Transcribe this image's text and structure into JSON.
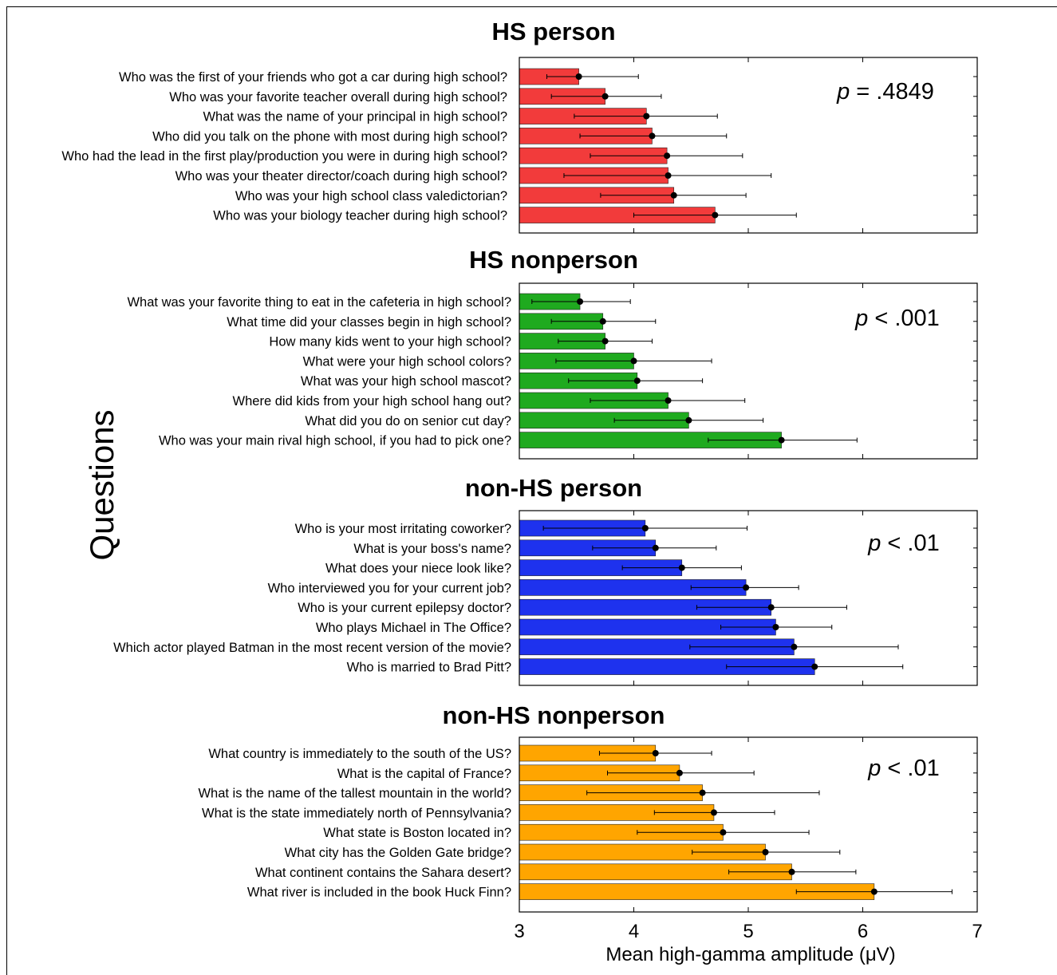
{
  "y_axis_label": "Questions",
  "chart_data": {
    "type": "bar",
    "orientation": "horizontal",
    "xlabel": "Mean high-gamma amplitude (μV)",
    "xlim": [
      3,
      7
    ],
    "xticks": [
      "3",
      "4",
      "5",
      "6",
      "7"
    ],
    "ylabel": "Questions",
    "grid": false,
    "panels": [
      {
        "title": "HS person",
        "annotation_p": "p",
        "annotation_rest": " = .4849",
        "color": "#f23b3b",
        "categories": [
          "Who was the first of your friends who got a car during high school?",
          "Who was your favorite teacher overall during high school?",
          "What was the name of your principal in high school?",
          "Who did you talk on the phone with most during high school?",
          "Who had the lead in the first play/production you were in during high school?",
          "Who was your theater director/coach during high school?",
          "Who was your high school class valedictorian?",
          "Who was your biology teacher during high school?"
        ],
        "values": [
          3.52,
          3.75,
          4.11,
          4.16,
          4.29,
          4.3,
          4.35,
          4.71
        ],
        "error_low": [
          3.24,
          3.28,
          3.48,
          3.53,
          3.62,
          3.39,
          3.71,
          4.0
        ],
        "error_high": [
          4.04,
          4.24,
          4.73,
          4.81,
          4.95,
          5.2,
          4.98,
          5.42
        ]
      },
      {
        "title": "HS nonperson",
        "annotation_p": "p",
        "annotation_rest": " < .001",
        "color": "#1faa1f",
        "categories": [
          "What was your favorite thing to eat in the cafeteria in high school?",
          "What time did your classes begin in high school?",
          "How many kids went to your high school?",
          "What were your high school colors?",
          "What was your high school mascot?",
          "Where did kids from your high school hang out?",
          "What did you do on senior cut day?",
          "Who was your main rival high school, if you had to pick one?"
        ],
        "values": [
          3.53,
          3.73,
          3.75,
          4.0,
          4.03,
          4.3,
          4.48,
          5.29
        ],
        "error_low": [
          3.11,
          3.28,
          3.34,
          3.32,
          3.43,
          3.62,
          3.83,
          4.65
        ],
        "error_high": [
          3.97,
          4.19,
          4.16,
          4.68,
          4.6,
          4.97,
          5.13,
          5.95
        ]
      },
      {
        "title": "non-HS person",
        "annotation_p": "p",
        "annotation_rest": " < .01",
        "color": "#1e32ee",
        "categories": [
          "Who is your most irritating coworker?",
          "What is your boss's name?",
          "What does your niece look like?",
          "Who interviewed you for your current job?",
          "Who is your current epilepsy doctor?",
          "Who plays Michael in The Office?",
          "Which actor played Batman in the most recent version of the movie?",
          "Who is married to Brad Pitt?"
        ],
        "values": [
          4.1,
          4.19,
          4.42,
          4.98,
          5.2,
          5.24,
          5.4,
          5.58
        ],
        "error_low": [
          3.21,
          3.64,
          3.9,
          4.5,
          4.55,
          4.76,
          4.49,
          4.81
        ],
        "error_high": [
          4.99,
          4.72,
          4.94,
          5.44,
          5.86,
          5.73,
          6.31,
          6.35
        ]
      },
      {
        "title": "non-HS nonperson",
        "annotation_p": "p",
        "annotation_rest": " < .01",
        "color": "#ffa500",
        "categories": [
          "What country is immediately to the south of the US?",
          "What is the capital of France?",
          "What is the name of the tallest mountain in the world?",
          "What is the state immediately north of Pennsylvania?",
          "What state is Boston located in?",
          "What city has the Golden Gate bridge?",
          "What continent contains the Sahara desert?",
          "What river is included in the book Huck Finn?"
        ],
        "values": [
          4.19,
          4.4,
          4.6,
          4.7,
          4.78,
          5.15,
          5.38,
          6.1
        ],
        "error_low": [
          3.7,
          3.77,
          3.59,
          4.18,
          4.03,
          4.51,
          4.83,
          5.42
        ],
        "error_high": [
          4.68,
          5.05,
          5.62,
          5.23,
          5.53,
          5.8,
          5.94,
          6.78
        ]
      }
    ]
  }
}
